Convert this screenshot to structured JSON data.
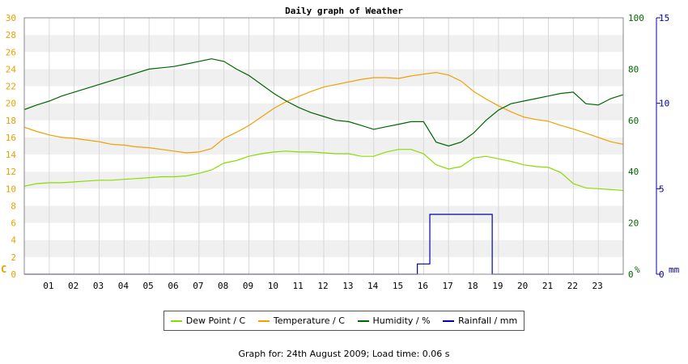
{
  "chart_data": {
    "type": "line",
    "title": "Daily graph of Weather",
    "x": [
      0,
      0.5,
      1,
      1.5,
      2,
      2.5,
      3,
      3.5,
      4,
      4.5,
      5,
      5.5,
      6,
      6.5,
      7,
      7.5,
      8,
      8.5,
      9,
      9.5,
      10,
      10.5,
      11,
      11.5,
      12,
      12.5,
      13,
      13.5,
      14,
      14.5,
      15,
      15.5,
      16,
      16.5,
      17,
      17.5,
      18,
      18.5,
      19,
      19.5,
      20,
      20.5,
      21,
      21.5,
      22,
      22.5,
      23,
      23.5,
      24
    ],
    "x_ticks": [
      "01",
      "02",
      "03",
      "04",
      "05",
      "06",
      "07",
      "08",
      "09",
      "10",
      "11",
      "12",
      "13",
      "14",
      "15",
      "16",
      "17",
      "18",
      "19",
      "20",
      "21",
      "22",
      "23"
    ],
    "xlim": [
      0,
      24
    ],
    "axes": {
      "left": {
        "unit": "C",
        "ylim": [
          0,
          30
        ],
        "ticks": [
          "0",
          "2",
          "4",
          "6",
          "8",
          "10",
          "12",
          "14",
          "16",
          "18",
          "20",
          "22",
          "24",
          "26",
          "28",
          "30"
        ],
        "color": "#e8a000"
      },
      "right1": {
        "unit": "%",
        "ylim": [
          0,
          100
        ],
        "ticks": [
          "0",
          "20",
          "40",
          "60",
          "80",
          "100"
        ],
        "color": "#006600"
      },
      "right2": {
        "unit": "mm",
        "ylim": [
          0,
          15
        ],
        "ticks": [
          "0",
          "5",
          "10",
          "15"
        ],
        "color": "#0000aa"
      }
    },
    "series": [
      {
        "name": "Dew Point / C",
        "axis": "left",
        "color": "#88dd00",
        "values": [
          10.3,
          10.6,
          10.7,
          10.7,
          10.8,
          10.9,
          11.0,
          11.0,
          11.1,
          11.2,
          11.3,
          11.4,
          11.4,
          11.5,
          11.8,
          12.2,
          13.0,
          13.3,
          13.8,
          14.1,
          14.3,
          14.4,
          14.3,
          14.3,
          14.2,
          14.1,
          14.1,
          13.8,
          13.8,
          14.3,
          14.6,
          14.6,
          14.1,
          12.8,
          12.3,
          12.6,
          13.6,
          13.8,
          13.5,
          13.2,
          12.8,
          12.6,
          12.5,
          11.9,
          10.6,
          10.1,
          10.0,
          9.9,
          9.8
        ]
      },
      {
        "name": "Temperature / C",
        "axis": "left",
        "color": "#f0a000",
        "values": [
          17.2,
          16.7,
          16.3,
          16.0,
          15.9,
          15.7,
          15.5,
          15.2,
          15.1,
          14.9,
          14.8,
          14.6,
          14.4,
          14.2,
          14.3,
          14.7,
          15.9,
          16.6,
          17.4,
          18.4,
          19.4,
          20.2,
          20.8,
          21.4,
          21.9,
          22.2,
          22.5,
          22.8,
          23.0,
          23.0,
          22.9,
          23.2,
          23.4,
          23.6,
          23.3,
          22.6,
          21.4,
          20.5,
          19.7,
          19.0,
          18.4,
          18.1,
          17.9,
          17.4,
          17.0,
          16.5,
          16.0,
          15.5,
          15.2
        ]
      },
      {
        "name": "Humidity / %",
        "axis": "right1",
        "color": "#006600",
        "values": [
          64.2,
          66.0,
          67.5,
          69.5,
          71.0,
          72.5,
          74.0,
          75.5,
          77.0,
          78.5,
          80.0,
          80.5,
          81.0,
          82.0,
          83.0,
          84.0,
          83.0,
          80.0,
          77.5,
          74.0,
          70.5,
          67.5,
          65.0,
          63.0,
          61.5,
          60.0,
          59.5,
          58.0,
          56.5,
          57.5,
          58.5,
          59.5,
          59.5,
          51.5,
          50.0,
          51.5,
          55.0,
          60.0,
          64.0,
          66.5,
          67.5,
          68.5,
          69.5,
          70.5,
          71.0,
          66.5,
          66.0,
          68.5,
          70.0
        ]
      },
      {
        "name": "Rainfall / mm",
        "axis": "right2",
        "color": "#0000aa",
        "values": [
          0,
          0,
          0,
          0,
          0,
          0,
          0,
          0,
          0,
          0,
          0,
          0,
          0,
          0,
          0,
          0,
          0,
          0,
          0,
          0,
          0,
          0,
          0,
          0,
          0,
          0,
          0,
          0,
          0,
          0,
          0,
          0,
          0.6,
          3.5,
          3.5,
          3.5,
          3.5,
          3.5,
          0,
          0,
          0,
          0,
          0,
          0,
          0,
          0,
          0,
          0,
          0
        ],
        "step": true
      }
    ],
    "grid": true
  },
  "footer": "Graph for: 24th August 2009; Load time: 0.06 s"
}
